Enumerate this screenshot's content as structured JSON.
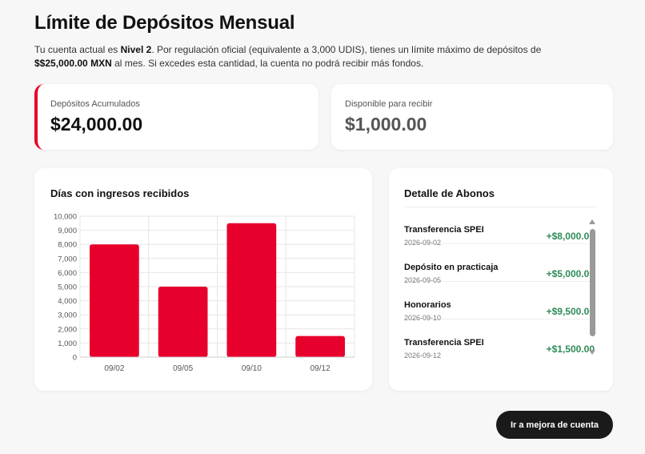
{
  "page": {
    "title": "Límite de Depósitos Mensual",
    "desc_part1": "Tu cuenta actual es ",
    "desc_level": "Nivel 2",
    "desc_part2": ". Por regulación oficial (equivalente a 3,000 UDIS), tienes un límite máximo de depósitos de ",
    "desc_limit": "$$25,000.00 MXN",
    "desc_part3": " al mes. Si excedes esta cantidad, la cuenta no podrá recibir más fondos."
  },
  "stats": {
    "accumulated_label": "Depósitos Acumulados",
    "accumulated_value": "$24,000.00",
    "available_label": "Disponible para recibir",
    "available_value": "$1,000.00"
  },
  "chart_card": {
    "title": "Días con ingresos recibidos"
  },
  "chart_data": {
    "type": "bar",
    "categories": [
      "09/02",
      "09/05",
      "09/10",
      "09/12"
    ],
    "values": [
      8000,
      5000,
      9500,
      1500
    ],
    "ylim": [
      0,
      10000
    ],
    "yticks": [
      0,
      1000,
      2000,
      3000,
      4000,
      5000,
      6000,
      7000,
      8000,
      9000,
      10000
    ],
    "ytick_labels": [
      "0",
      "1,000",
      "2,000",
      "3,000",
      "4,000",
      "5,000",
      "6,000",
      "7,000",
      "8,000",
      "9,000",
      "10,000"
    ],
    "bar_color": "#e8002c",
    "grid": true
  },
  "abonos": {
    "title": "Detalle de Abonos",
    "items": [
      {
        "name": "Transferencia SPEI",
        "date": "2026-09-02",
        "amount": "+$8,000.00"
      },
      {
        "name": "Depósito en practicaja",
        "date": "2026-09-05",
        "amount": "+$5,000.00"
      },
      {
        "name": "Honorarios",
        "date": "2026-09-10",
        "amount": "+$9,500.00"
      },
      {
        "name": "Transferencia SPEI",
        "date": "2026-09-12",
        "amount": "+$1,500.00"
      }
    ]
  },
  "cta": {
    "label": "Ir a mejora de cuenta"
  },
  "colors": {
    "accent": "#e8002c",
    "positive": "#2e8b57",
    "cta_bg": "#1a1a1a"
  }
}
